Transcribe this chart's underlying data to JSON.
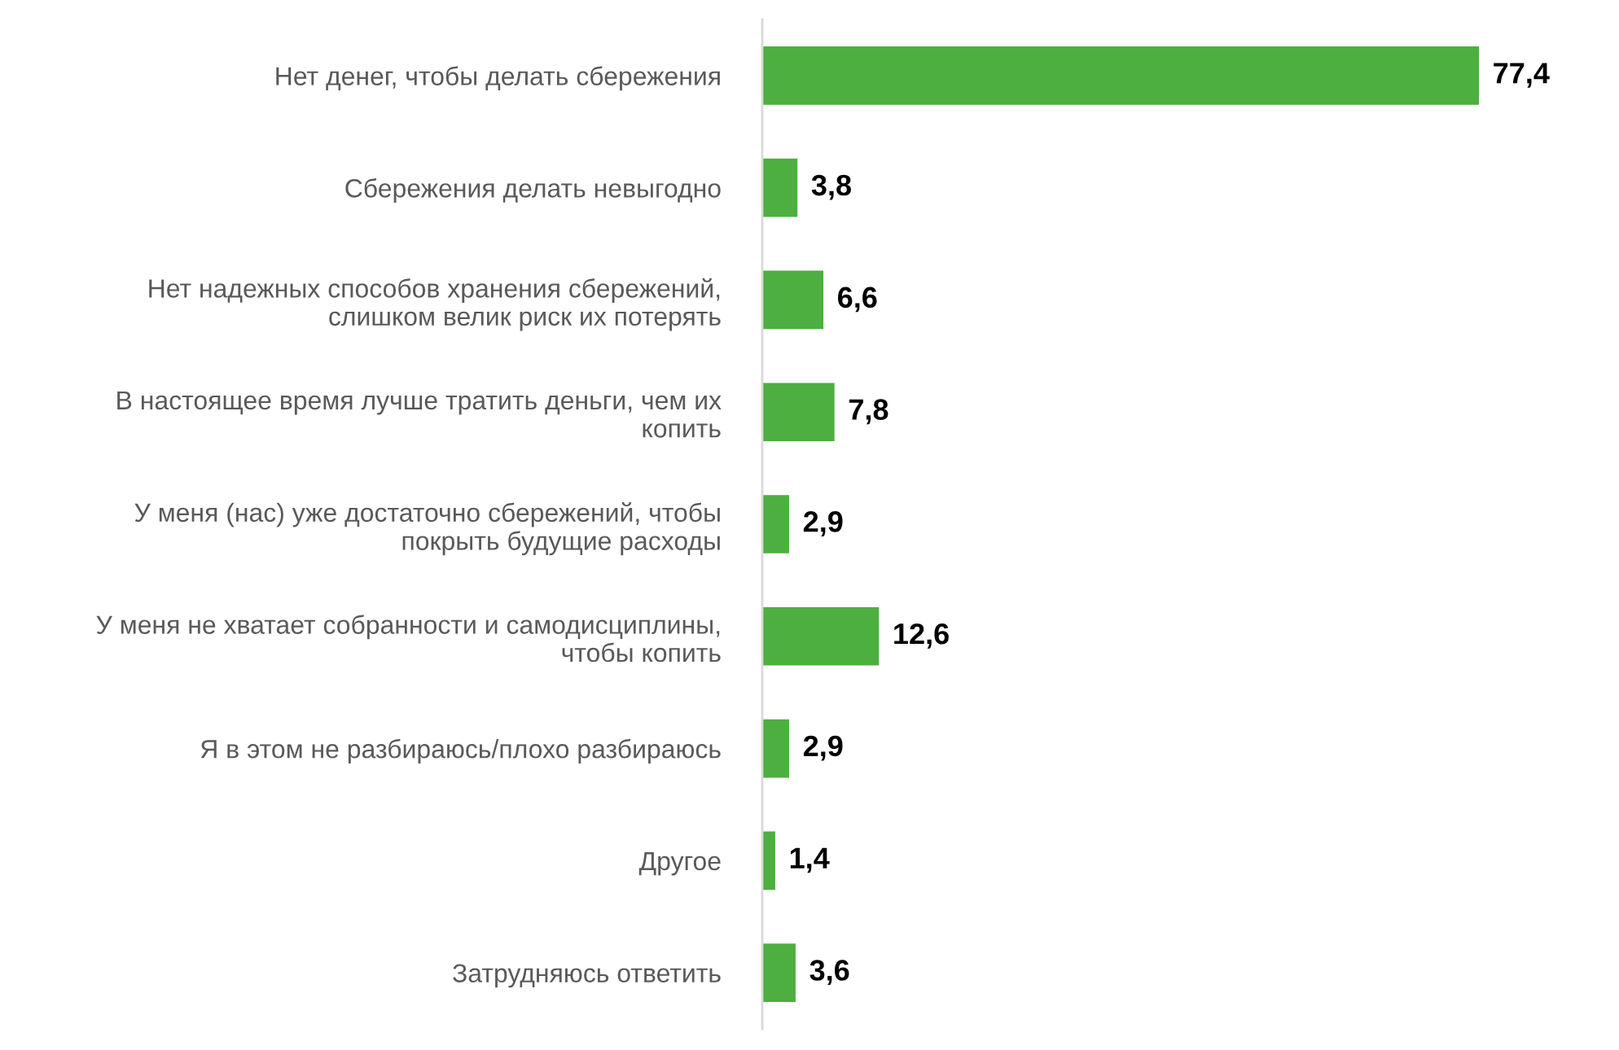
{
  "chart_data": {
    "type": "bar",
    "orientation": "horizontal",
    "categories": [
      "Нет денег, чтобы делать сбережения",
      "Сбережения делать невыгодно",
      "Нет надежных способов хранения сбережений,\nслишком велик риск их потерять",
      "В настоящее время лучше тратить деньги, чем их\nкопить",
      "У меня (нас) уже достаточно сбережений, чтобы\nпокрыть будущие расходы",
      "У меня не хватает собранности и самодисциплины,\nчтобы копить",
      "Я в этом не разбираюсь/плохо разбираюсь",
      "Другое",
      "Затрудняюсь ответить"
    ],
    "values": [
      77.4,
      3.8,
      6.6,
      7.8,
      2.9,
      12.6,
      2.9,
      1.4,
      3.6
    ],
    "value_labels": [
      "77,4",
      "3,8",
      "6,6",
      "7,8",
      "2,9",
      "12,6",
      "2,9",
      "1,4",
      "3,6"
    ],
    "color": "#4caf3f",
    "tick_labels": "y"
  }
}
